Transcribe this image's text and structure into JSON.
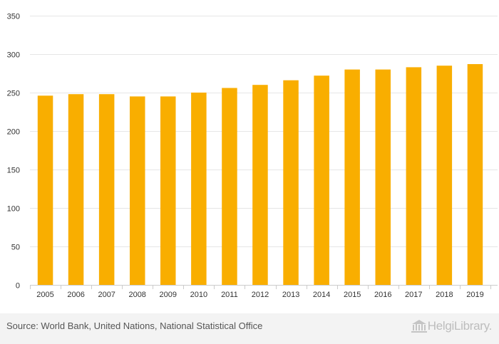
{
  "chart_data": {
    "type": "bar",
    "title": "",
    "xlabel": "",
    "ylabel": "",
    "categories": [
      "2005",
      "2006",
      "2007",
      "2008",
      "2009",
      "2010",
      "2011",
      "2012",
      "2013",
      "2014",
      "2015",
      "2016",
      "2017",
      "2018",
      "2019"
    ],
    "values": [
      246,
      248,
      248,
      245,
      245,
      250,
      256,
      260,
      266,
      272,
      280,
      280,
      283,
      285,
      287
    ],
    "ylim": [
      0,
      350
    ],
    "yticks": [
      0,
      50,
      100,
      150,
      200,
      250,
      300,
      350
    ],
    "grid": true,
    "bar_color": "#f9ae00"
  },
  "footer": {
    "source": "Source: World Bank, United Nations, National Statistical Office",
    "logo_text": "HelgiLibrary."
  }
}
